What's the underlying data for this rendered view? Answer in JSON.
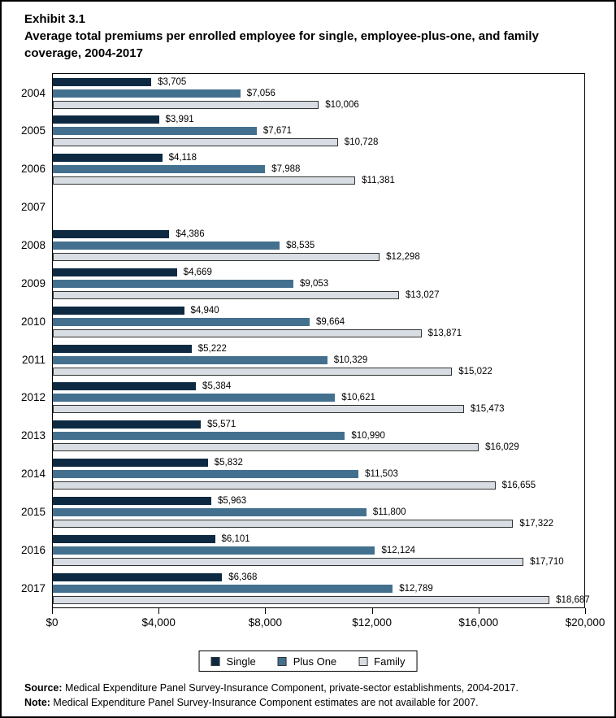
{
  "header": {
    "exhibit": "Exhibit 3.1",
    "title": "Average total premiums per enrolled employee for single, employee-plus-one, and family coverage, 2004-2017"
  },
  "chart_data": {
    "type": "bar",
    "orientation": "horizontal",
    "title": "Average total premiums per enrolled employee for single, employee-plus-one, and family coverage, 2004-2017",
    "categories": [
      "2004",
      "2005",
      "2006",
      "2007",
      "2008",
      "2009",
      "2010",
      "2011",
      "2012",
      "2013",
      "2014",
      "2015",
      "2016",
      "2017"
    ],
    "series": [
      {
        "name": "Single",
        "color": "#0d2a42",
        "values": [
          3705,
          3991,
          4118,
          null,
          4386,
          4669,
          4940,
          5222,
          5384,
          5571,
          5832,
          5963,
          6101,
          6368
        ]
      },
      {
        "name": "Plus One",
        "color": "#44708f",
        "values": [
          7056,
          7671,
          7988,
          null,
          8535,
          9053,
          9664,
          10329,
          10621,
          10990,
          11503,
          11800,
          12124,
          12789
        ]
      },
      {
        "name": "Family",
        "color": "#d7dde3",
        "border_color": "#333333",
        "values": [
          10006,
          10728,
          11381,
          null,
          12298,
          13027,
          13871,
          15022,
          15473,
          16029,
          16655,
          17322,
          17710,
          18687
        ]
      }
    ],
    "value_prefix": "$",
    "xlim": [
      0,
      20000
    ],
    "x_ticks": [
      {
        "value": 0,
        "label": "$0"
      },
      {
        "value": 4000,
        "label": "$4,000"
      },
      {
        "value": 8000,
        "label": "$8,000"
      },
      {
        "value": 12000,
        "label": "$12,000"
      },
      {
        "value": 16000,
        "label": "$16,000"
      },
      {
        "value": 20000,
        "label": "$20,000"
      }
    ],
    "grid": false,
    "legend_position": "bottom",
    "legend_items": [
      "Single",
      "Plus One",
      "Family"
    ]
  },
  "footer": {
    "source_label": "Source:",
    "source_text": " Medical Expenditure Panel Survey-Insurance Component, private-sector establishments, 2004-2017.",
    "note_label": "Note:",
    "note_text": " Medical Expenditure Panel Survey-Insurance Component estimates are not available for 2007."
  }
}
